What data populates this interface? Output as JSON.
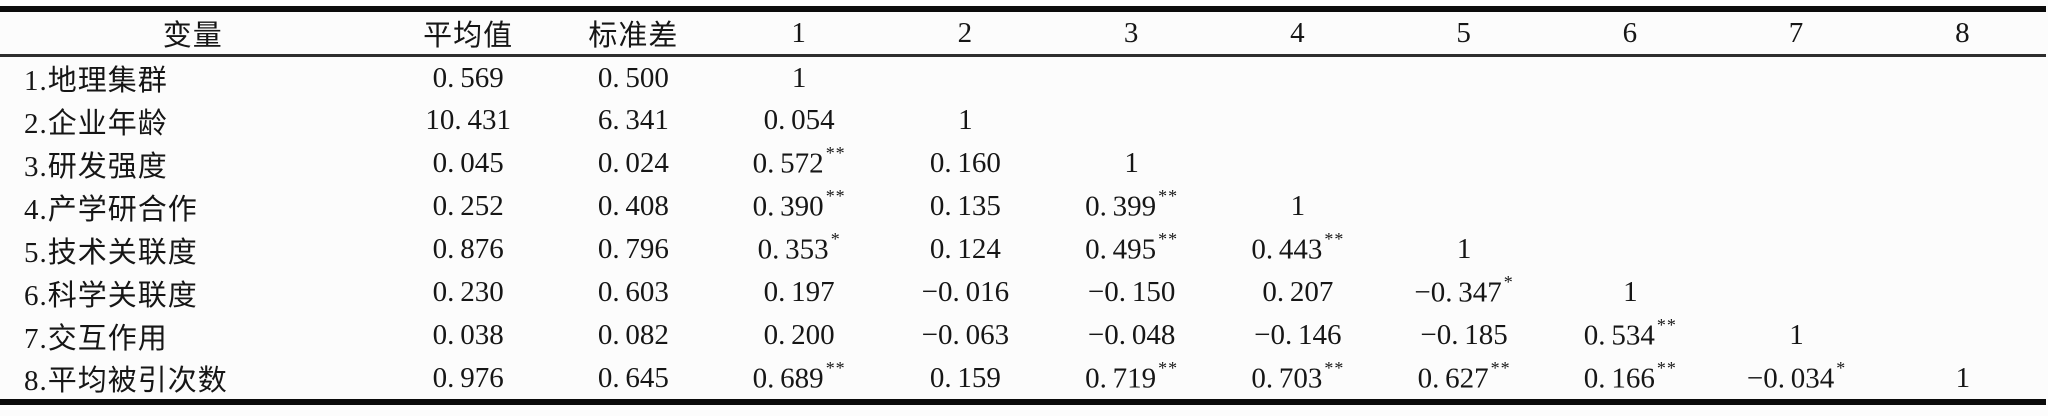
{
  "colors": {
    "background": "#fcfcfc",
    "text": "#161616",
    "rule_heavy": "#0b0b0b",
    "rule_light": "#2e2e2e"
  },
  "table": {
    "columns": [
      "变量",
      "平均值",
      "标准差",
      "1",
      "2",
      "3",
      "4",
      "5",
      "6",
      "7",
      "8"
    ],
    "rows": [
      {
        "label": "1.地理集群",
        "mean": "0.569",
        "sd": "0.500",
        "corr": [
          "1",
          "",
          "",
          "",
          "",
          "",
          "",
          ""
        ]
      },
      {
        "label": "2.企业年龄",
        "mean": "10.431",
        "sd": "6.341",
        "corr": [
          "0.054",
          "1",
          "",
          "",
          "",
          "",
          "",
          ""
        ]
      },
      {
        "label": "3.研发强度",
        "mean": "0.045",
        "sd": "0.024",
        "corr": [
          "0.572**",
          "0.160",
          "1",
          "",
          "",
          "",
          "",
          ""
        ]
      },
      {
        "label": "4.产学研合作",
        "mean": "0.252",
        "sd": "0.408",
        "corr": [
          "0.390**",
          "0.135",
          "0.399**",
          "1",
          "",
          "",
          "",
          ""
        ]
      },
      {
        "label": "5.技术关联度",
        "mean": "0.876",
        "sd": "0.796",
        "corr": [
          "0.353*",
          "0.124",
          "0.495**",
          "0.443**",
          "1",
          "",
          "",
          ""
        ]
      },
      {
        "label": "6.科学关联度",
        "mean": "0.230",
        "sd": "0.603",
        "corr": [
          "0.197",
          "−0.016",
          "−0.150",
          "0.207",
          "−0.347*",
          "1",
          "",
          ""
        ]
      },
      {
        "label": "7.交互作用",
        "mean": "0.038",
        "sd": "0.082",
        "corr": [
          "0.200",
          "−0.063",
          "−0.048",
          "−0.146",
          "−0.185",
          "0.534**",
          "1",
          ""
        ]
      },
      {
        "label": "8.平均被引次数",
        "mean": "0.976",
        "sd": "0.645",
        "corr": [
          "0.689**",
          "0.159",
          "0.719**",
          "0.703**",
          "0.627**",
          "0.166**",
          "−0.034*",
          "1"
        ]
      }
    ]
  }
}
